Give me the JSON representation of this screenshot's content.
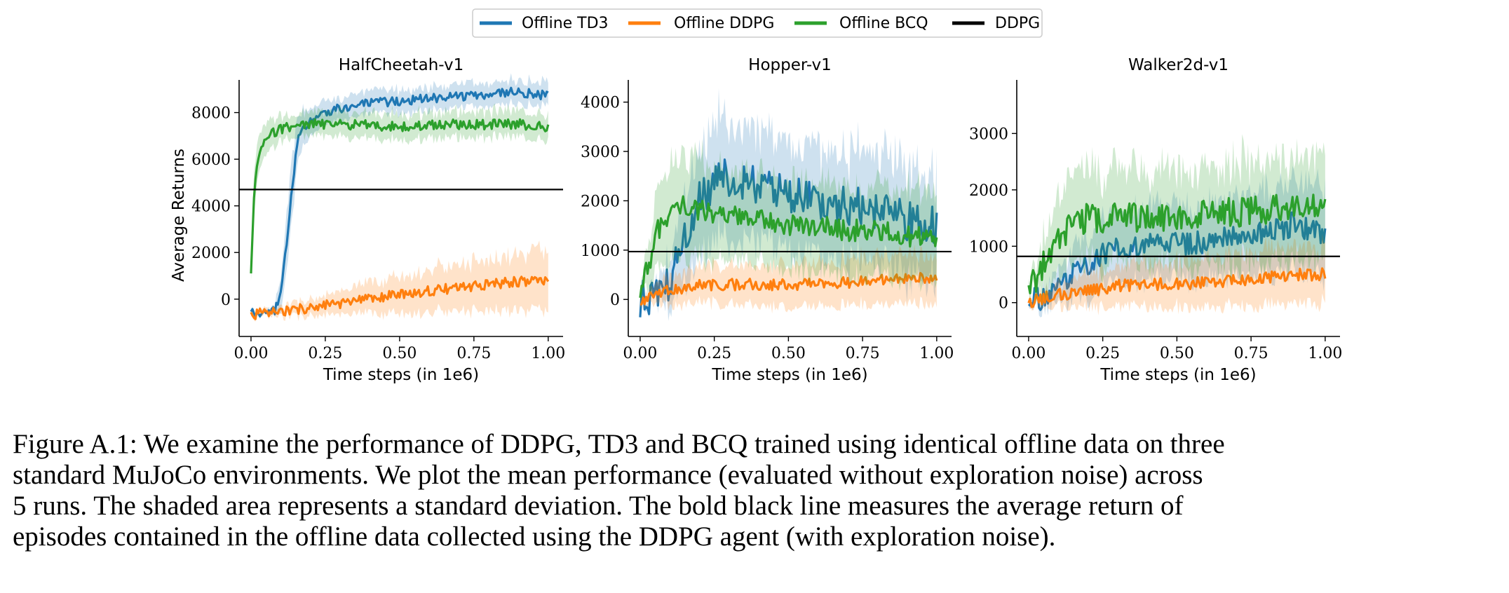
{
  "legend": {
    "entries": [
      {
        "label": "Offline TD3",
        "color": "#1f77b4"
      },
      {
        "label": "Offline DDPG",
        "color": "#ff7f0e"
      },
      {
        "label": "Offline BCQ",
        "color": "#2ca02c"
      },
      {
        "label": "DDPG",
        "color": "#000000"
      }
    ]
  },
  "chart_data": [
    {
      "type": "line",
      "title": "HalfCheetah-v1",
      "xlabel": "Time steps (in 1e6)",
      "ylabel": "Average Returns",
      "xlim": [
        -0.04,
        1.05
      ],
      "ylim": [
        -1600,
        9400
      ],
      "xticks": [
        0.0,
        0.25,
        0.5,
        0.75,
        1.0
      ],
      "xtick_labels": [
        "0.00",
        "0.25",
        "0.50",
        "0.75",
        "1.00"
      ],
      "yticks": [
        0,
        2000,
        4000,
        6000,
        8000
      ],
      "ytick_labels": [
        "0",
        "2000",
        "4000",
        "6000",
        "8000"
      ],
      "baseline": {
        "name": "DDPG",
        "y": 4700
      },
      "series": [
        {
          "name": "Offline TD3",
          "x": [
            0.0,
            0.05,
            0.08,
            0.1,
            0.12,
            0.14,
            0.16,
            0.2,
            0.25,
            0.3,
            0.4,
            0.5,
            0.6,
            0.7,
            0.8,
            0.9,
            1.0
          ],
          "y": [
            -600,
            -650,
            -500,
            200,
            2500,
            5000,
            7000,
            7600,
            8000,
            8200,
            8400,
            8500,
            8600,
            8700,
            8800,
            8900,
            8700
          ],
          "std": [
            100,
            100,
            150,
            800,
            1200,
            1300,
            900,
            600,
            500,
            500,
            500,
            500,
            500,
            500,
            500,
            500,
            500
          ],
          "noise": 200
        },
        {
          "name": "Offline DDPG",
          "x": [
            0.0,
            0.1,
            0.2,
            0.3,
            0.4,
            0.5,
            0.6,
            0.7,
            0.8,
            0.9,
            1.0
          ],
          "y": [
            -650,
            -550,
            -350,
            -200,
            0,
            200,
            350,
            500,
            650,
            750,
            850
          ],
          "std": [
            100,
            200,
            350,
            500,
            650,
            800,
            900,
            1000,
            1100,
            1200,
            1300
          ],
          "noise": 220
        },
        {
          "name": "Offline BCQ",
          "x": [
            0.0,
            0.01,
            0.02,
            0.04,
            0.08,
            0.12,
            0.2,
            0.3,
            0.5,
            0.7,
            0.9,
            1.0
          ],
          "y": [
            1000,
            4200,
            5800,
            6600,
            7200,
            7400,
            7500,
            7500,
            7400,
            7500,
            7500,
            7400
          ],
          "std": [
            300,
            900,
            800,
            700,
            600,
            500,
            500,
            550,
            550,
            550,
            550,
            550
          ],
          "noise": 220
        }
      ]
    },
    {
      "type": "line",
      "title": "Hopper-v1",
      "xlabel": "Time steps (in 1e6)",
      "ylabel": "",
      "xlim": [
        -0.04,
        1.05
      ],
      "ylim": [
        -750,
        4450
      ],
      "xticks": [
        0.0,
        0.25,
        0.5,
        0.75,
        1.0
      ],
      "xtick_labels": [
        "0.00",
        "0.25",
        "0.50",
        "0.75",
        "1.00"
      ],
      "yticks": [
        0,
        1000,
        2000,
        3000,
        4000
      ],
      "ytick_labels": [
        "0",
        "1000",
        "2000",
        "3000",
        "4000"
      ],
      "baseline": {
        "name": "DDPG",
        "y": 970
      },
      "series": [
        {
          "name": "Offline TD3",
          "x": [
            0.0,
            0.05,
            0.1,
            0.15,
            0.2,
            0.25,
            0.3,
            0.4,
            0.5,
            0.6,
            0.7,
            0.8,
            0.9,
            1.0
          ],
          "y": [
            0,
            50,
            400,
            1200,
            2000,
            2400,
            2500,
            2300,
            2100,
            2000,
            1900,
            1800,
            1600,
            1500
          ],
          "std": [
            50,
            100,
            500,
            900,
            1100,
            1200,
            1200,
            1100,
            1100,
            1100,
            1100,
            1100,
            1100,
            1000
          ],
          "noise": 400
        },
        {
          "name": "Offline DDPG",
          "x": [
            0.0,
            0.05,
            0.1,
            0.2,
            0.3,
            0.4,
            0.5,
            0.6,
            0.7,
            0.8,
            0.9,
            1.0
          ],
          "y": [
            0,
            50,
            200,
            300,
            300,
            300,
            300,
            300,
            350,
            400,
            450,
            450
          ],
          "std": [
            50,
            200,
            300,
            350,
            400,
            400,
            450,
            450,
            450,
            500,
            500,
            500
          ],
          "noise": 120
        },
        {
          "name": "Offline BCQ",
          "x": [
            0.0,
            0.03,
            0.06,
            0.1,
            0.15,
            0.2,
            0.3,
            0.4,
            0.5,
            0.6,
            0.7,
            0.8,
            0.9,
            1.0
          ],
          "y": [
            200,
            700,
            1400,
            1800,
            1900,
            1800,
            1700,
            1600,
            1500,
            1500,
            1400,
            1400,
            1300,
            1200
          ],
          "std": [
            100,
            500,
            800,
            1000,
            1000,
            1000,
            900,
            900,
            900,
            900,
            900,
            900,
            900,
            900
          ],
          "noise": 220
        }
      ]
    },
    {
      "type": "line",
      "title": "Walker2d-v1",
      "xlabel": "Time steps (in 1e6)",
      "ylabel": "",
      "xlim": [
        -0.04,
        1.05
      ],
      "ylim": [
        -600,
        3950
      ],
      "xticks": [
        0.0,
        0.25,
        0.5,
        0.75,
        1.0
      ],
      "xtick_labels": [
        "0.00",
        "0.25",
        "0.50",
        "0.75",
        "1.00"
      ],
      "yticks": [
        0,
        1000,
        2000,
        3000
      ],
      "ytick_labels": [
        "0",
        "1000",
        "2000",
        "3000"
      ],
      "baseline": {
        "name": "DDPG",
        "y": 820
      },
      "series": [
        {
          "name": "Offline TD3",
          "x": [
            0.0,
            0.05,
            0.1,
            0.15,
            0.2,
            0.25,
            0.3,
            0.4,
            0.5,
            0.6,
            0.7,
            0.8,
            0.9,
            1.0
          ],
          "y": [
            0,
            100,
            300,
            500,
            700,
            850,
            950,
            1000,
            1050,
            1100,
            1150,
            1250,
            1400,
            1200
          ],
          "std": [
            50,
            150,
            300,
            450,
            550,
            600,
            600,
            650,
            650,
            650,
            700,
            750,
            800,
            800
          ],
          "noise": 220
        },
        {
          "name": "Offline DDPG",
          "x": [
            0.0,
            0.1,
            0.2,
            0.3,
            0.4,
            0.5,
            0.6,
            0.7,
            0.8,
            0.9,
            1.0
          ],
          "y": [
            0,
            150,
            200,
            300,
            300,
            350,
            350,
            400,
            450,
            500,
            500
          ],
          "std": [
            50,
            200,
            300,
            350,
            400,
            400,
            450,
            450,
            500,
            500,
            500
          ],
          "noise": 110
        },
        {
          "name": "Offline BCQ",
          "x": [
            0.0,
            0.02,
            0.05,
            0.1,
            0.15,
            0.2,
            0.3,
            0.4,
            0.5,
            0.6,
            0.7,
            0.8,
            0.9,
            1.0
          ],
          "y": [
            300,
            400,
            700,
            1100,
            1400,
            1500,
            1500,
            1500,
            1550,
            1600,
            1600,
            1650,
            1700,
            1800
          ],
          "std": [
            100,
            200,
            500,
            700,
            800,
            800,
            800,
            800,
            850,
            850,
            900,
            900,
            900,
            950
          ],
          "noise": 260
        }
      ]
    }
  ],
  "caption": {
    "lines": [
      "Figure A.1: We examine the performance of DDPG, TD3 and BCQ trained using identical offline data on three",
      "standard MuJoCo environments. We plot the mean performance (evaluated without exploration noise) across",
      "5 runs. The shaded area represents a standard deviation. The bold black line measures the average return of",
      "episodes contained in the offline data collected using the DDPG agent (with exploration noise)."
    ]
  }
}
